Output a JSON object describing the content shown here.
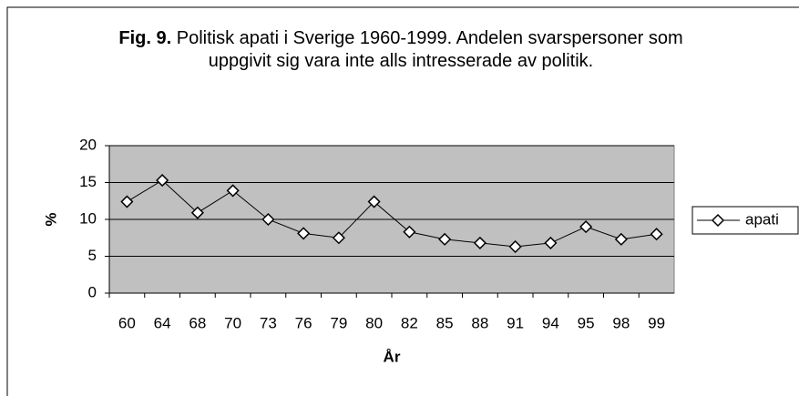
{
  "chart_data": {
    "type": "line",
    "title_label": "Fig. 9.",
    "title": "Politisk apati i Sverige 1960-1999. Andelen svarspersoner som uppgivit sig vara inte alls intresserade av politik.",
    "x_label": "År",
    "y_label": "%",
    "categories": [
      "60",
      "64",
      "68",
      "70",
      "73",
      "76",
      "79",
      "80",
      "82",
      "85",
      "88",
      "91",
      "94",
      "95",
      "98",
      "99"
    ],
    "series": [
      {
        "name": "apati",
        "color": "#000000",
        "values": [
          12.4,
          15.3,
          10.9,
          13.9,
          10.0,
          8.1,
          7.5,
          12.4,
          8.3,
          7.3,
          6.8,
          6.3,
          6.8,
          9.0,
          7.3,
          8.0
        ]
      }
    ],
    "ylim": [
      0,
      20
    ],
    "yticks": [
      0,
      5,
      10,
      15,
      20
    ],
    "grid": true,
    "legend": "right"
  }
}
